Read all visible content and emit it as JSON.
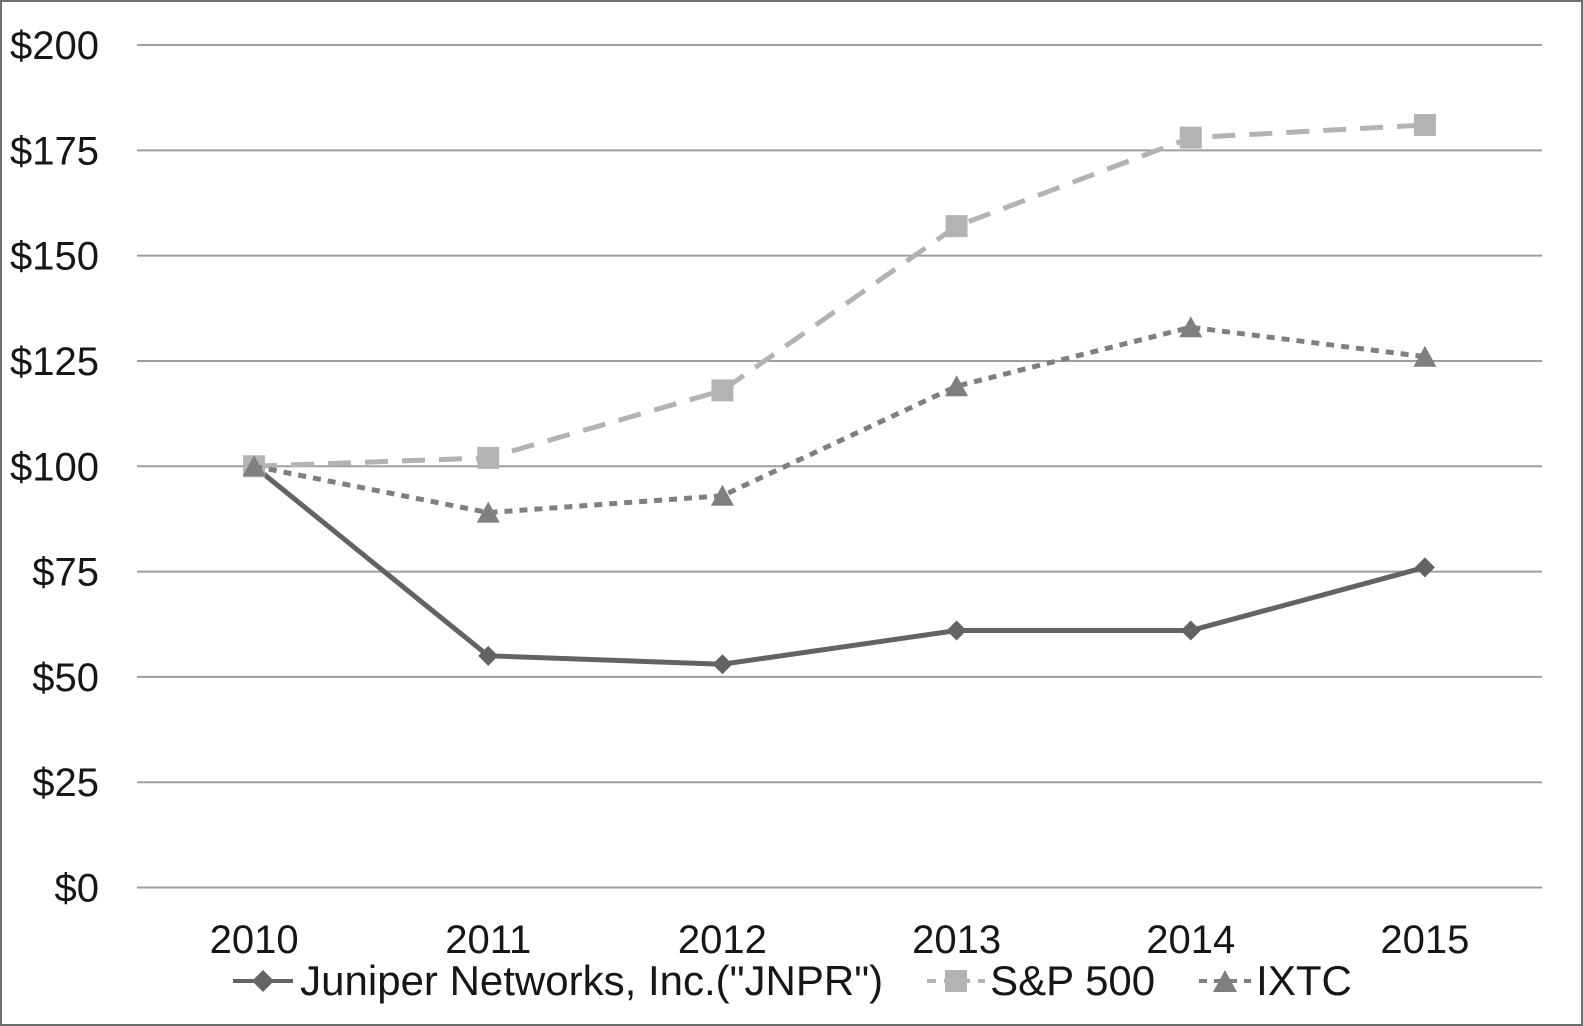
{
  "chart_data": {
    "type": "line",
    "title": "",
    "xlabel": "",
    "ylabel": "",
    "categories": [
      "2010",
      "2011",
      "2012",
      "2013",
      "2014",
      "2015"
    ],
    "series": [
      {
        "id": "jnpr",
        "name": "Juniper Networks, Inc.(\"JNPR\")",
        "values": [
          100,
          55,
          53,
          61,
          61,
          76
        ],
        "color": "#636363",
        "line_style": "solid",
        "marker": "diamond"
      },
      {
        "id": "sp500",
        "name": "S&P 500",
        "values": [
          100,
          102,
          118,
          157,
          178,
          181
        ],
        "color": "#b3b3b3",
        "line_style": "long-dash",
        "marker": "square"
      },
      {
        "id": "ixtc",
        "name": "IXTC",
        "values": [
          100,
          89,
          93,
          119,
          133,
          126
        ],
        "color": "#7f7f7f",
        "line_style": "short-dash",
        "marker": "triangle"
      }
    ],
    "ylim": [
      0,
      200
    ],
    "y_ticks": [
      {
        "value": 200,
        "label": "$200"
      },
      {
        "value": 175,
        "label": "$175"
      },
      {
        "value": 150,
        "label": "$150"
      },
      {
        "value": 125,
        "label": "$125"
      },
      {
        "value": 100,
        "label": "$100"
      },
      {
        "value": 75,
        "label": "$75"
      },
      {
        "value": 50,
        "label": "$50"
      },
      {
        "value": 25,
        "label": "$25"
      },
      {
        "value": 0,
        "label": "$0"
      }
    ],
    "grid": "horizontal",
    "legend_position": "bottom",
    "grid_color": "#9e9e9e",
    "text_color": "#161616",
    "background_color": "#ffffff"
  }
}
